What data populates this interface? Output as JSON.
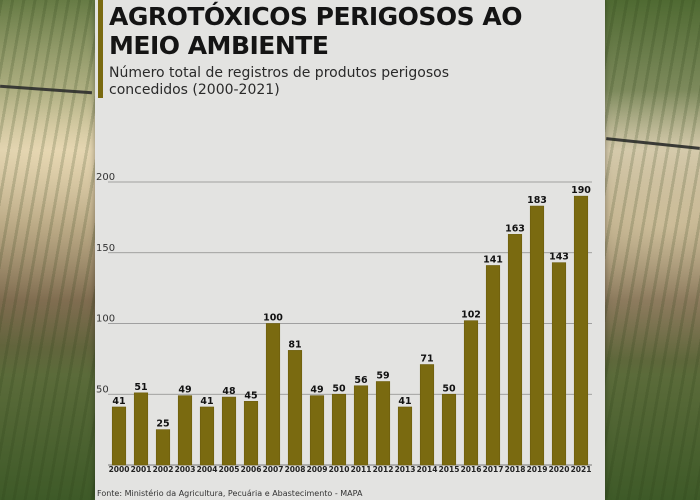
{
  "colors": {
    "bar": "#7a6a10",
    "bar_edge": "#6b5c0c",
    "accent": "#7a6a10",
    "panel": "#e3e3e1",
    "grid": "#8a8a8a"
  },
  "header": {
    "title": "AGROTÓXICOS PERIGOSOS AO MEIO AMBIENTE",
    "subtitle": "Número total de registros de produtos perigosos concedidos (2000-2021)"
  },
  "footer": {
    "source": "Fonte: Ministério da Agricultura, Pecuária e Abastecimento - MAPA"
  },
  "chart_data": {
    "type": "bar",
    "title": "AGROTÓXICOS PERIGOSOS AO MEIO AMBIENTE",
    "subtitle": "Número total de registros de produtos perigosos concedidos (2000-2021)",
    "xlabel": "",
    "ylabel": "",
    "categories": [
      "2000",
      "2001",
      "2002",
      "2003",
      "2004",
      "2005",
      "2006",
      "2007",
      "2008",
      "2009",
      "2010",
      "2011",
      "2012",
      "2013",
      "2014",
      "2015",
      "2016",
      "2017",
      "2018",
      "2019",
      "2020",
      "2021"
    ],
    "values": [
      41,
      51,
      25,
      49,
      41,
      48,
      45,
      100,
      81,
      49,
      50,
      56,
      59,
      41,
      71,
      50,
      102,
      141,
      163,
      183,
      143,
      190
    ],
    "ylim": [
      0,
      200
    ],
    "yticks": [
      50,
      100,
      150,
      200
    ],
    "grid": true,
    "data_labels": true
  }
}
